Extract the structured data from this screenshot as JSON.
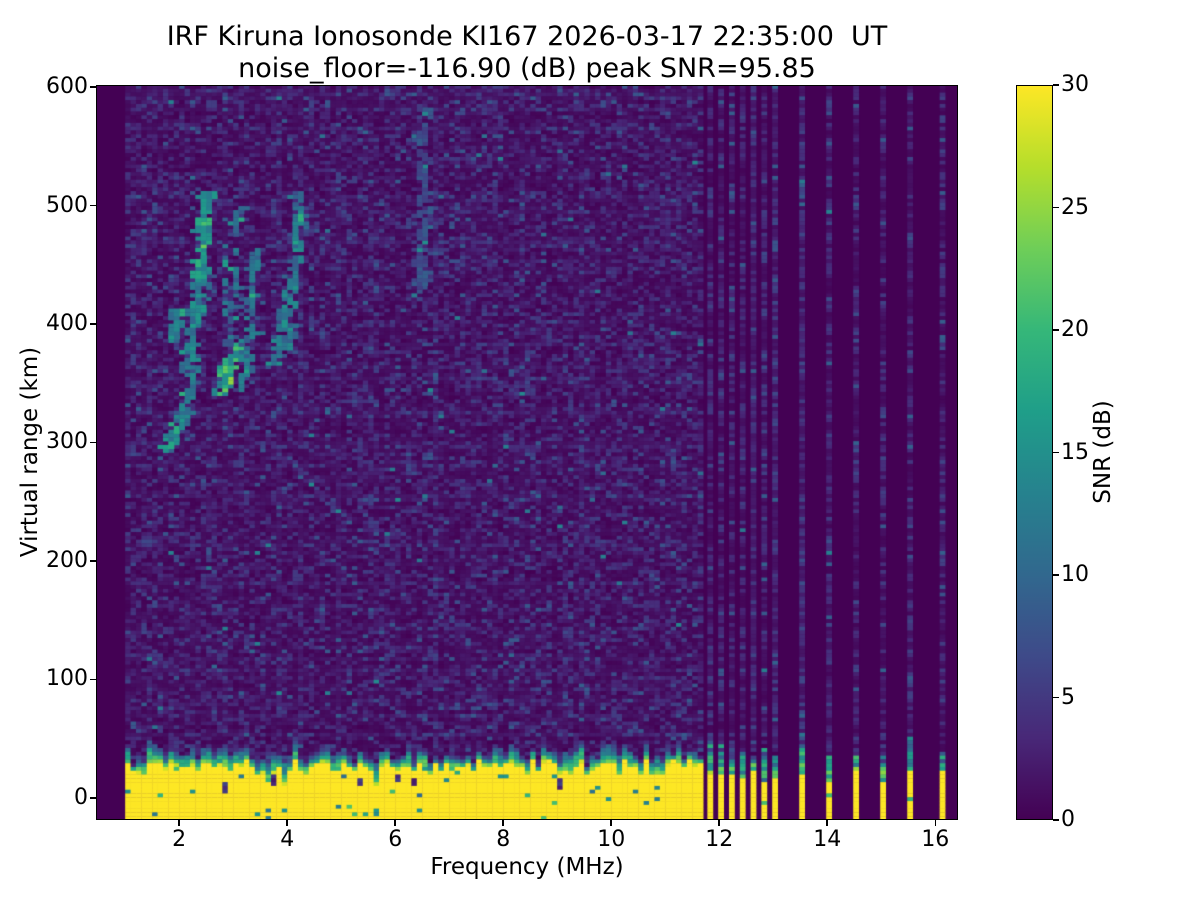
{
  "chart_data": {
    "type": "heatmap",
    "title": "IRF Kiruna Ionosonde KI167 2026-03-17 22:35:00  UT",
    "subtitle": "noise_floor=-116.90 (dB) peak SNR=95.85",
    "station": "IRF Kiruna Ionosonde KI167",
    "timestamp_ut": "2026-03-17 22:35:00",
    "noise_floor_db": -116.9,
    "peak_snr_db": 95.85,
    "xlabel": "Frequency (MHz)",
    "ylabel": "Virtual range (km)",
    "colorbar_label": "SNR (dB)",
    "xlim": [
      0.46,
      16.42
    ],
    "ylim": [
      -18.6,
      601.7
    ],
    "clim": [
      0,
      30
    ],
    "x_ticks": [
      2,
      4,
      6,
      8,
      10,
      12,
      14,
      16
    ],
    "y_ticks": [
      0,
      100,
      200,
      300,
      400,
      500,
      600
    ],
    "colorbar_ticks": [
      0,
      5,
      10,
      15,
      20,
      25,
      30
    ],
    "colormap": "viridis",
    "colormap_stops": [
      "#440154",
      "#482878",
      "#3e4a89",
      "#31688e",
      "#26828e",
      "#1f9e89",
      "#35b779",
      "#6ece58",
      "#b5de2b",
      "#fde725"
    ],
    "grid": {
      "freq_min": 1.0,
      "freq_step": 0.1,
      "n_range_rows": 194
    },
    "continuous_sweep": {
      "freq_start": 1.0,
      "freq_end": 11.62
    },
    "rfi_sounding_freqs": [
      11.78,
      11.98,
      12.18,
      12.38,
      12.58,
      12.78,
      12.98,
      13.48,
      13.98,
      14.48,
      14.98,
      15.48,
      16.08
    ],
    "ground_pulse": {
      "km_top_mean": 26,
      "km_top_jitter": 12,
      "snr_saturated": 30,
      "teal_fade_km": 14
    },
    "echo_traces": [
      {
        "f0": 1.7,
        "f1": 2.08,
        "km0": 292,
        "km1": 326,
        "snr": 13,
        "spread": 7,
        "density": 0.8
      },
      {
        "f0": 1.95,
        "f1": 2.28,
        "km0": 324,
        "km1": 362,
        "snr": 11,
        "spread": 6,
        "density": 0.5
      },
      {
        "f0": 2.1,
        "f1": 2.36,
        "km0": 358,
        "km1": 440,
        "snr": 13,
        "spread": 7,
        "density": 0.75
      },
      {
        "f0": 2.33,
        "f1": 2.45,
        "km0": 438,
        "km1": 512,
        "snr": 15,
        "spread": 6,
        "density": 0.9
      },
      {
        "f0": 1.85,
        "f1": 1.95,
        "km0": 386,
        "km1": 414,
        "snr": 12,
        "spread": 5,
        "density": 0.7
      },
      {
        "f0": 2.72,
        "f1": 3.02,
        "km0": 342,
        "km1": 380,
        "snr": 17,
        "spread": 9,
        "density": 0.85
      },
      {
        "f0": 2.85,
        "f1": 3.05,
        "km0": 382,
        "km1": 498,
        "snr": 10,
        "spread": 6,
        "density": 0.4
      },
      {
        "f0": 3.16,
        "f1": 3.34,
        "km0": 348,
        "km1": 460,
        "snr": 11,
        "spread": 6,
        "density": 0.45
      },
      {
        "f0": 3.74,
        "f1": 3.92,
        "km0": 368,
        "km1": 420,
        "snr": 12,
        "spread": 6,
        "density": 0.6
      },
      {
        "f0": 3.98,
        "f1": 4.18,
        "km0": 382,
        "km1": 510,
        "snr": 12,
        "spread": 7,
        "density": 0.5
      },
      {
        "f0": 6.42,
        "f1": 6.5,
        "km0": 420,
        "km1": 583,
        "snr": 7,
        "spread": 4,
        "density": 0.55
      }
    ]
  }
}
